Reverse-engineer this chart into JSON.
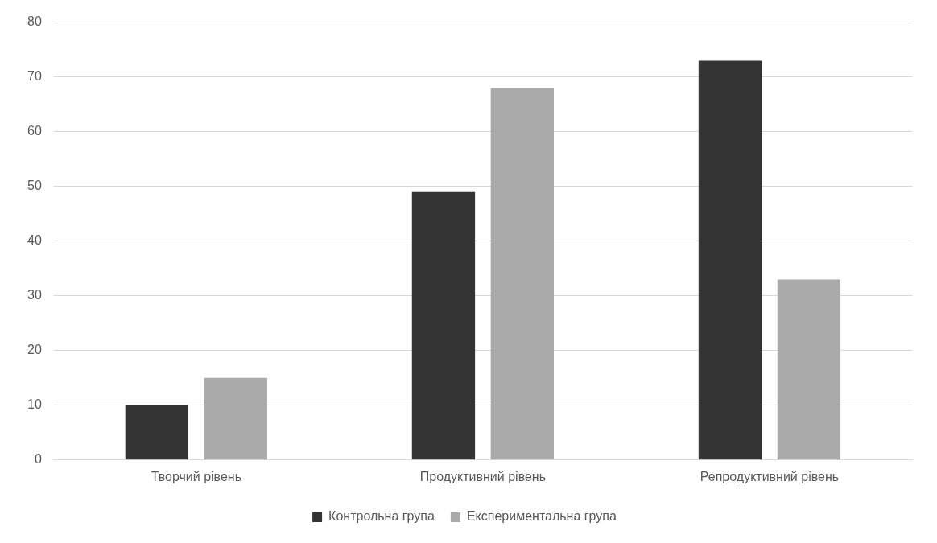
{
  "chart_data": {
    "type": "bar",
    "categories": [
      "Творчий рівень",
      "Продуктивний рівень",
      "Репродуктивний рівень"
    ],
    "series": [
      {
        "name": "Контрольна група",
        "color": "#333333",
        "values": [
          10,
          49,
          73
        ]
      },
      {
        "name": "Експериментальна група",
        "color": "#aaaaaa",
        "values": [
          15,
          68,
          33
        ]
      }
    ],
    "ylim": [
      0,
      80
    ],
    "yticks": [
      0,
      10,
      20,
      30,
      40,
      50,
      60,
      70,
      80
    ],
    "grid": "y",
    "legend": "bottom"
  }
}
